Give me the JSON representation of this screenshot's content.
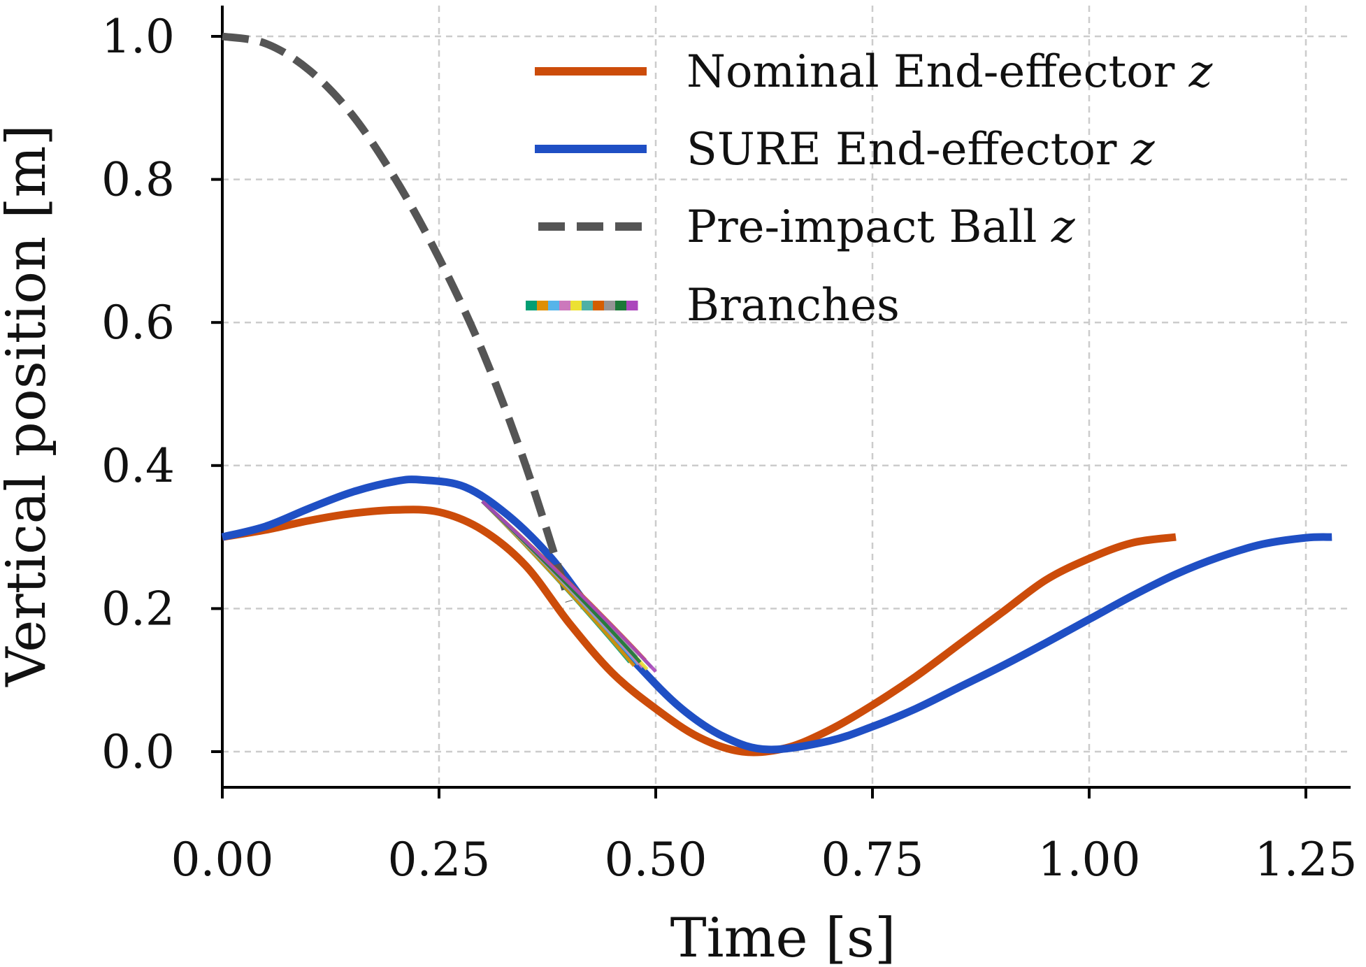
{
  "chart_data": {
    "type": "line",
    "xlabel": "Time [s]",
    "ylabel": "Vertical position [m]",
    "xlim": [
      0.0,
      1.3
    ],
    "ylim": [
      -0.05,
      1.05
    ],
    "grid": true,
    "legend_position": "top-right",
    "x_ticks": [
      0.0,
      0.25,
      0.5,
      0.75,
      1.0,
      1.25
    ],
    "x_tick_labels": [
      "0.00",
      "0.25",
      "0.50",
      "0.75",
      "1.00",
      "1.25"
    ],
    "y_ticks": [
      0.0,
      0.2,
      0.4,
      0.6,
      0.8,
      1.0
    ],
    "y_tick_labels": [
      "0.0",
      "0.2",
      "0.4",
      "0.6",
      "0.8",
      "1.0"
    ],
    "series": [
      {
        "name": "Nominal End-effector",
        "var": "z",
        "color": "#cc4c0a",
        "style": "solid",
        "x": [
          0.0,
          0.05,
          0.1,
          0.15,
          0.2,
          0.25,
          0.3,
          0.35,
          0.4,
          0.45,
          0.5,
          0.55,
          0.6,
          0.65,
          0.7,
          0.75,
          0.8,
          0.85,
          0.9,
          0.95,
          1.0,
          1.05,
          1.1
        ],
        "values": [
          0.3,
          0.31,
          0.323,
          0.333,
          0.338,
          0.335,
          0.31,
          0.26,
          0.18,
          0.11,
          0.06,
          0.02,
          0.0,
          0.005,
          0.03,
          0.065,
          0.105,
          0.15,
          0.195,
          0.24,
          0.27,
          0.292,
          0.3
        ]
      },
      {
        "name": "SURE End-effector",
        "var": "z",
        "color": "#1f4fc4",
        "style": "solid",
        "x": [
          0.0,
          0.05,
          0.1,
          0.15,
          0.2,
          0.23,
          0.28,
          0.33,
          0.38,
          0.43,
          0.48,
          0.53,
          0.58,
          0.63,
          0.7,
          0.75,
          0.8,
          0.85,
          0.9,
          0.95,
          1.0,
          1.05,
          1.1,
          1.15,
          1.2,
          1.25,
          1.28
        ],
        "values": [
          0.3,
          0.315,
          0.34,
          0.363,
          0.378,
          0.38,
          0.37,
          0.33,
          0.27,
          0.19,
          0.12,
          0.06,
          0.02,
          0.003,
          0.015,
          0.035,
          0.06,
          0.09,
          0.12,
          0.152,
          0.185,
          0.218,
          0.248,
          0.272,
          0.29,
          0.299,
          0.3
        ]
      },
      {
        "name": "Pre-impact Ball",
        "var": "z",
        "color": "#555555",
        "style": "dashed",
        "x": [
          0.0,
          0.05,
          0.1,
          0.15,
          0.2,
          0.25,
          0.3,
          0.35,
          0.4
        ],
        "values": [
          1.0,
          0.99,
          0.953,
          0.89,
          0.8,
          0.69,
          0.56,
          0.4,
          0.21
        ]
      }
    ],
    "branches": {
      "name": "Branches",
      "colors": [
        "#029e73",
        "#de8f05",
        "#56b4e9",
        "#cc78bc",
        "#ece133",
        "#4fb0a5",
        "#d55e00",
        "#949494",
        "#1b7837",
        "#ab47bc"
      ],
      "start_x": 0.3,
      "start_value": 0.35,
      "end_x": [
        0.47,
        0.475,
        0.48,
        0.485,
        0.49,
        0.495,
        0.488,
        0.478,
        0.482,
        0.5
      ],
      "end_value": [
        0.125,
        0.12,
        0.122,
        0.118,
        0.115,
        0.118,
        0.128,
        0.132,
        0.125,
        0.112
      ]
    }
  }
}
